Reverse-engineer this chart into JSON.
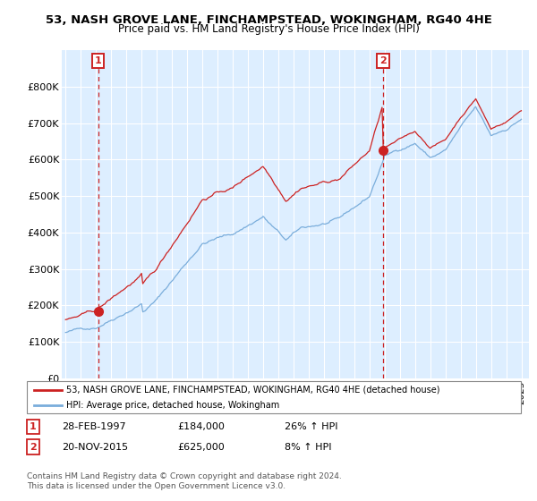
{
  "title": "53, NASH GROVE LANE, FINCHAMPSTEAD, WOKINGHAM, RG40 4HE",
  "subtitle": "Price paid vs. HM Land Registry's House Price Index (HPI)",
  "legend_line1": "53, NASH GROVE LANE, FINCHAMPSTEAD, WOKINGHAM, RG40 4HE (detached house)",
  "legend_line2": "HPI: Average price, detached house, Wokingham",
  "footer": "Contains HM Land Registry data © Crown copyright and database right 2024.\nThis data is licensed under the Open Government Licence v3.0.",
  "sale1_label": "1",
  "sale1_date": "28-FEB-1997",
  "sale1_price": "£184,000",
  "sale1_hpi": "26% ↑ HPI",
  "sale2_label": "2",
  "sale2_date": "20-NOV-2015",
  "sale2_price": "£625,000",
  "sale2_hpi": "8% ↑ HPI",
  "sale1_year": 1997.15,
  "sale1_value": 184000,
  "sale2_year": 2015.9,
  "sale2_value": 625000,
  "hpi_color": "#7aaddb",
  "price_color": "#cc2222",
  "dashed_color": "#cc2222",
  "background_color": "#ddeeff",
  "ylim_max": 900000,
  "xlim_start": 1994.75,
  "xlim_end": 2025.5
}
